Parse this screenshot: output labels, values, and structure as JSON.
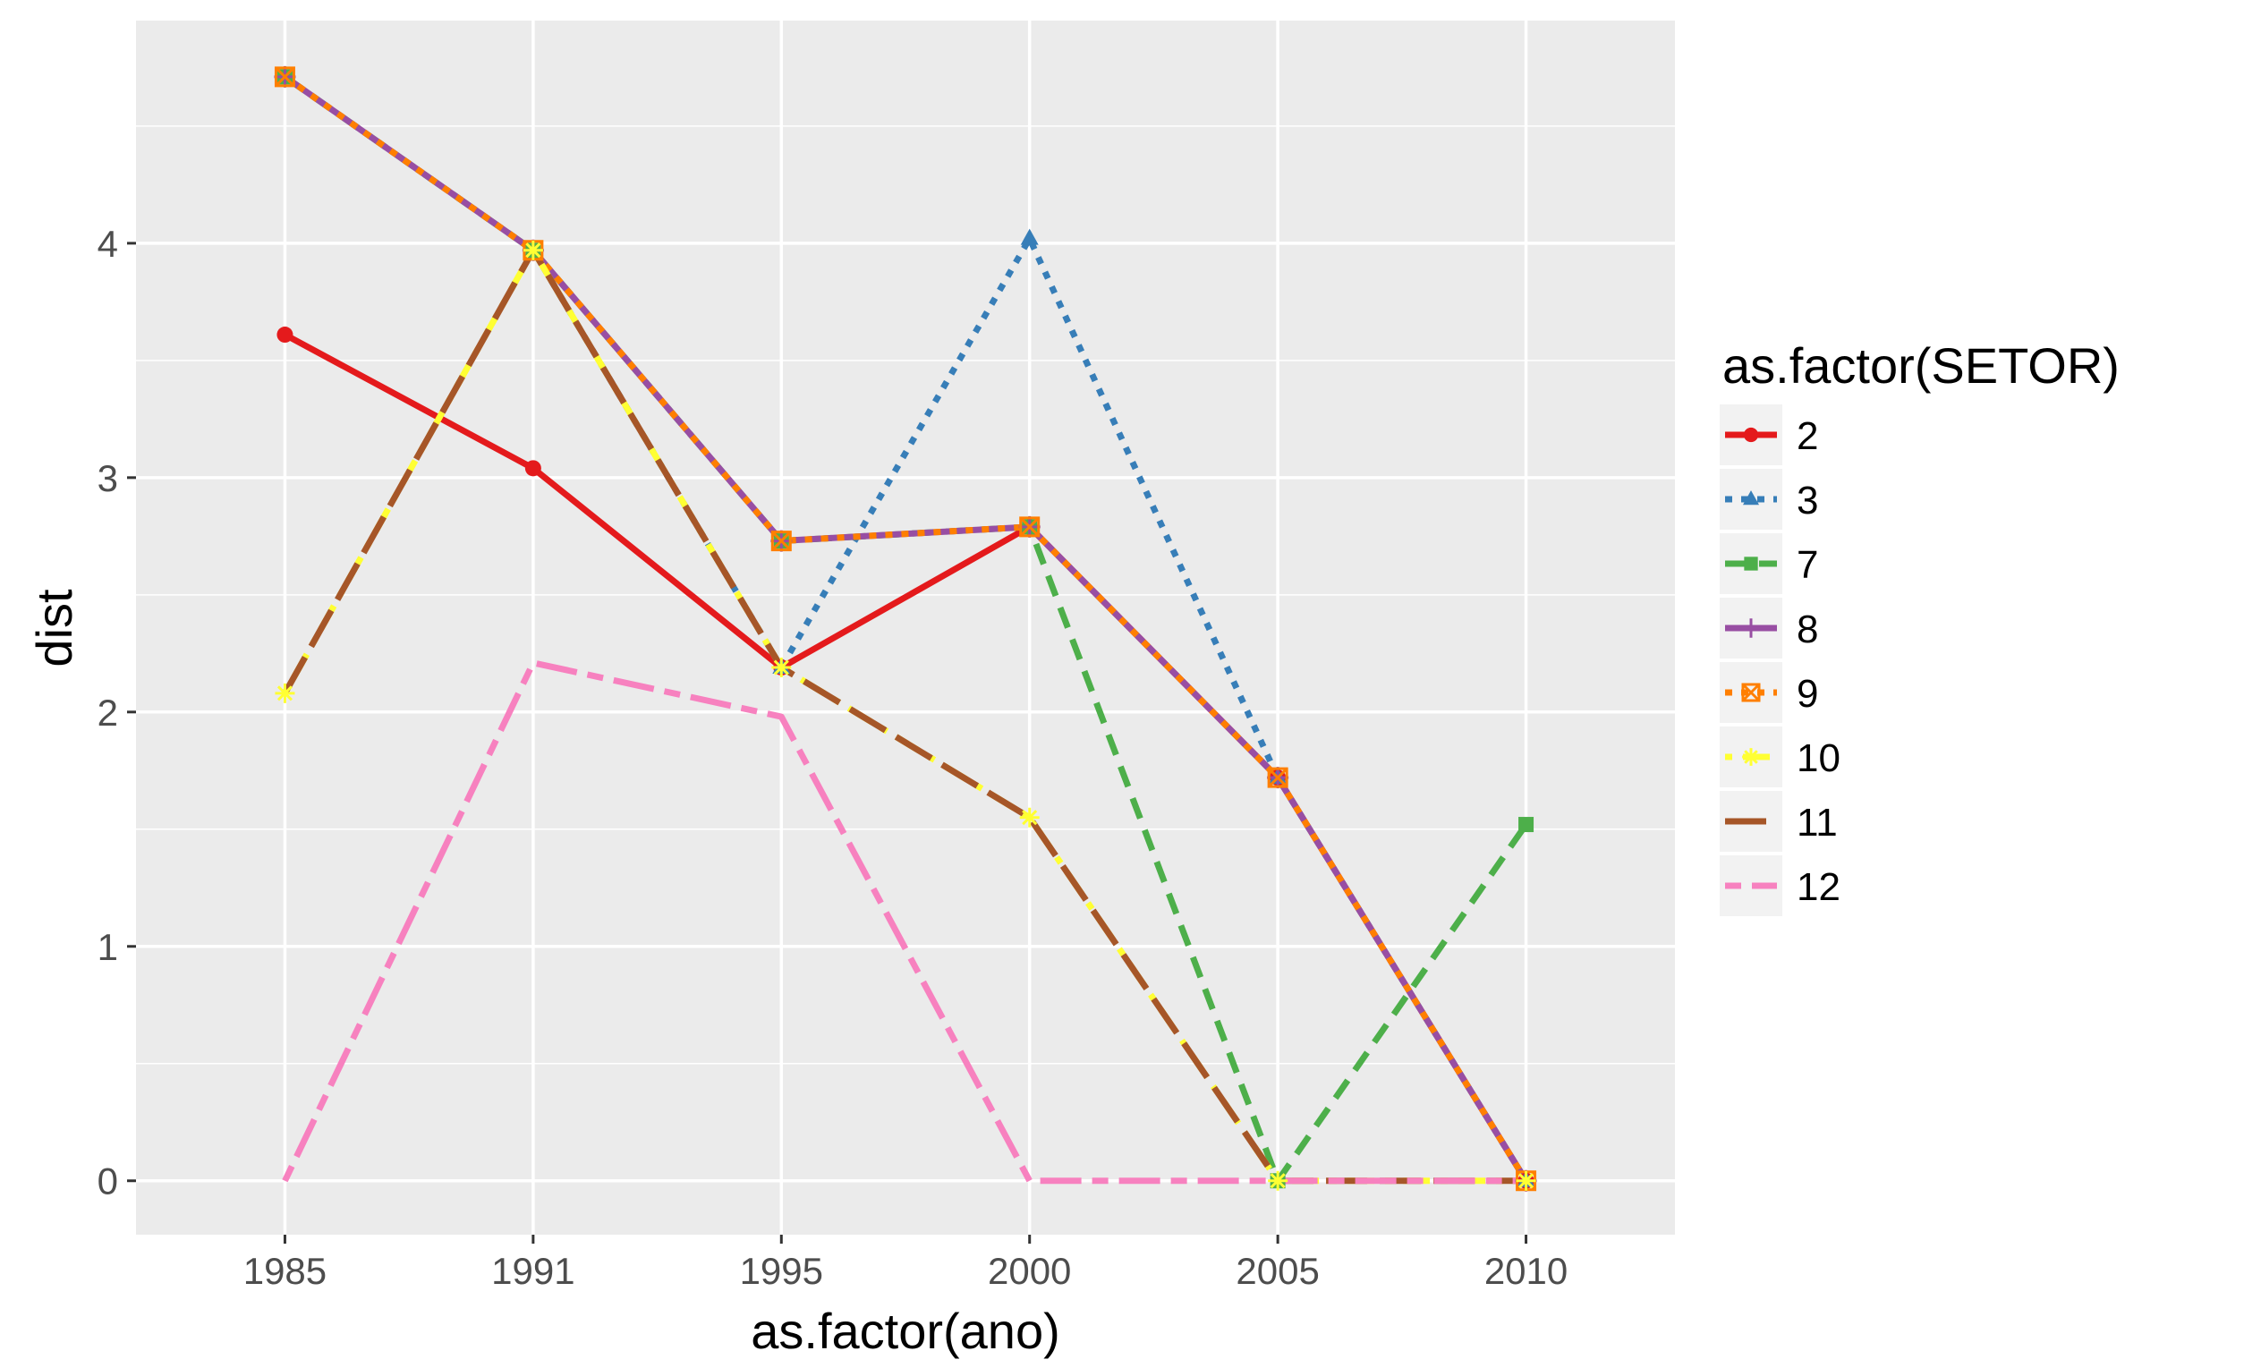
{
  "chart_data": {
    "type": "line",
    "title": "",
    "xlabel": "as.factor(ano)",
    "ylabel": "dist",
    "categories": [
      "1985",
      "1991",
      "1995",
      "2000",
      "2005",
      "2010"
    ],
    "ylim": [
      -0.23,
      4.95
    ],
    "yticks": [
      "0",
      "1",
      "2",
      "3",
      "4"
    ],
    "grid": true,
    "legend": {
      "title": "as.factor(SETOR)",
      "placement": "right"
    },
    "series": [
      {
        "name": "2",
        "color": "#e41a1c",
        "dash": "solid",
        "marker": "circle",
        "values": [
          3.61,
          3.04,
          2.19,
          2.79,
          1.72,
          0.0
        ]
      },
      {
        "name": "3",
        "color": "#377eb8",
        "dash": "dotted",
        "marker": "triangle",
        "values": [
          4.71,
          3.97,
          2.19,
          4.02,
          1.72,
          0.0
        ]
      },
      {
        "name": "7",
        "color": "#4daf4a",
        "dash": "dashed",
        "marker": "square",
        "values": [
          4.71,
          3.97,
          2.73,
          2.79,
          0.0,
          1.52
        ]
      },
      {
        "name": "8",
        "color": "#984ea3",
        "dash": "solid",
        "marker": "plus",
        "values": [
          4.71,
          3.97,
          2.73,
          2.79,
          1.72,
          0.0
        ]
      },
      {
        "name": "9",
        "color": "#ff7f00",
        "dash": "dotted",
        "marker": "boxx",
        "values": [
          4.71,
          3.97,
          2.73,
          2.79,
          1.72,
          0.0
        ]
      },
      {
        "name": "10",
        "color": "#ffff33",
        "dash": "dotdash",
        "marker": "asterisk",
        "values": [
          2.08,
          3.97,
          2.19,
          1.55,
          0.0,
          0.0
        ]
      },
      {
        "name": "11",
        "color": "#a65628",
        "dash": "longdash",
        "marker": "none",
        "values": [
          2.08,
          3.97,
          2.19,
          1.55,
          0.0,
          0.0
        ]
      },
      {
        "name": "12",
        "color": "#f781bf",
        "dash": "twodash",
        "marker": "none",
        "values": [
          0.0,
          2.21,
          1.98,
          0.0,
          0.0,
          0.0
        ]
      }
    ]
  }
}
